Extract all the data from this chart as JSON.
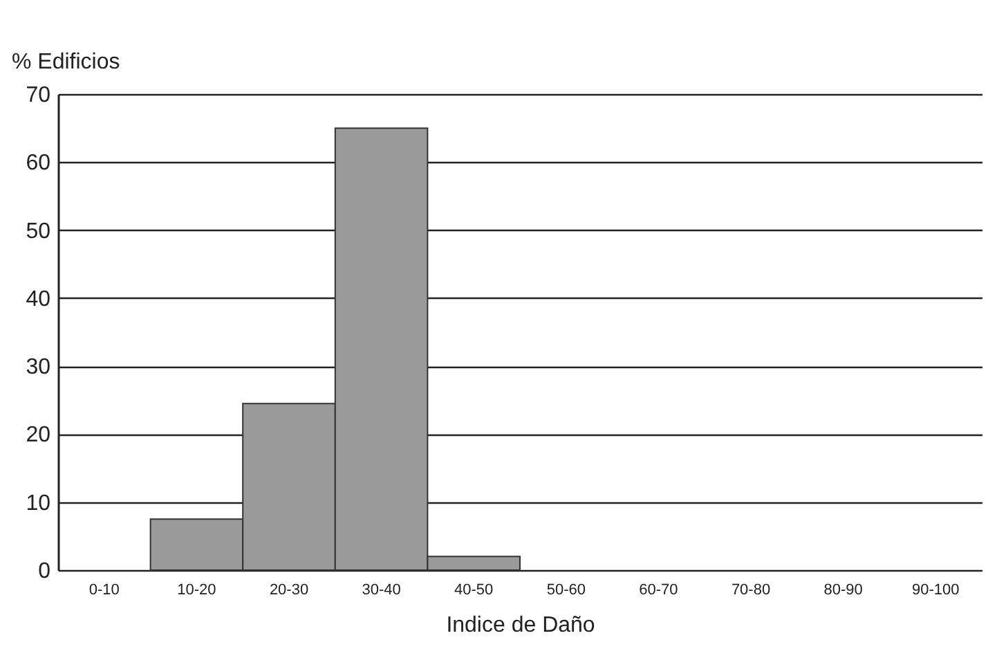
{
  "chart_data": {
    "type": "bar",
    "xlabel": "Indice de Daño",
    "ylabel": "% Edificios",
    "categories": [
      "0-10",
      "10-20",
      "20-30",
      "30-40",
      "40-50",
      "50-60",
      "60-70",
      "70-80",
      "80-90",
      "90-100"
    ],
    "values": [
      0,
      7.5,
      24.5,
      65,
      2,
      0,
      0,
      0,
      0,
      0
    ],
    "color": "#9a9a9a",
    "ylim": [
      0,
      70
    ],
    "yticks": [
      0,
      10,
      20,
      30,
      40,
      50,
      60,
      70
    ],
    "grid": "y"
  }
}
